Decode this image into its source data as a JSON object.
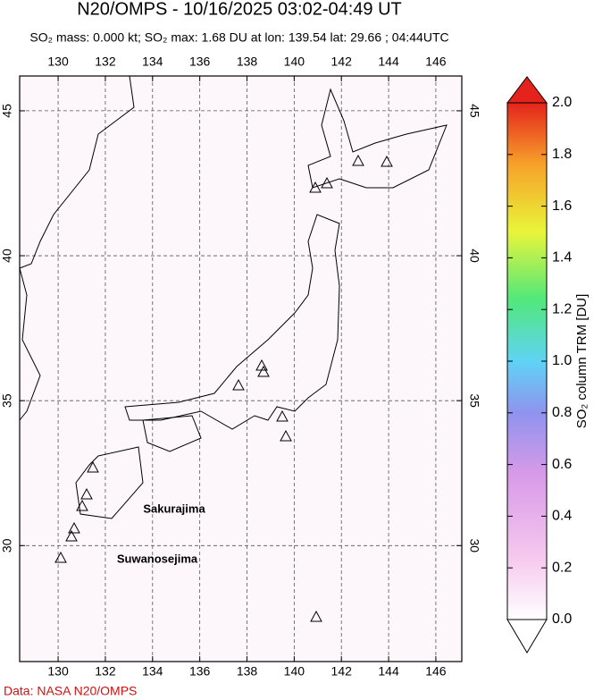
{
  "map": {
    "title": "N20/OMPS - 10/16/2025 03:02-04:49 UT",
    "subtitle": "SO₂ mass: 0.000 kt; SO₂ max: 1.68 DU at lon: 139.54 lat: 29.66 ; 04:44UTC",
    "lonlim": [
      128.37,
      147.1
    ],
    "latlim": [
      26.0,
      46.2
    ],
    "lon_ticks": [
      130,
      132,
      134,
      136,
      138,
      140,
      142,
      144,
      146
    ],
    "lat_ticks": [
      30,
      35,
      40,
      45
    ],
    "volcano_labels": [
      "Sakurajima",
      "Suwanosejima"
    ],
    "colorbar": {
      "label": "SO₂ column TRM [DU]",
      "lim": [
        0,
        2
      ],
      "ticks": [
        {
          "value": 0,
          "label": "0.0"
        },
        {
          "value": 0.2,
          "label": "0.2"
        },
        {
          "value": 0.4,
          "label": "0.4"
        },
        {
          "value": 0.6,
          "label": "0.6"
        },
        {
          "value": 0.8,
          "label": "0.8"
        },
        {
          "value": 1,
          "label": "1.0"
        },
        {
          "value": 1.2,
          "label": "1.2"
        },
        {
          "value": 1.4,
          "label": "1.4"
        },
        {
          "value": 1.6,
          "label": "1.6"
        },
        {
          "value": 1.8,
          "label": "1.8"
        },
        {
          "value": 2,
          "label": "2.0"
        }
      ]
    },
    "credit": "Data: NASA N20/OMPS"
  }
}
